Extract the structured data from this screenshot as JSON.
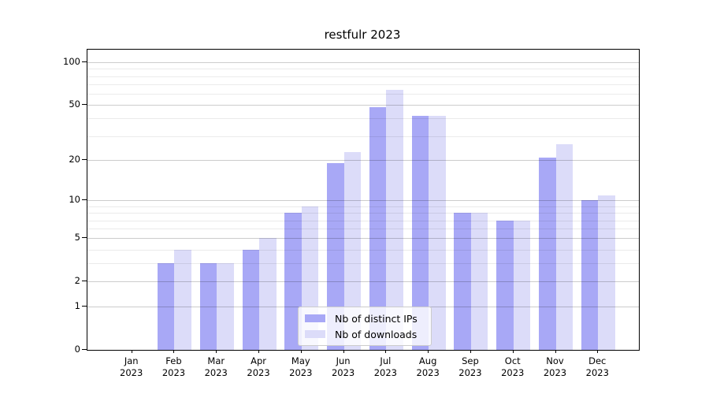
{
  "chart_data": {
    "type": "bar",
    "title": "restfulr 2023",
    "categories": [
      "Jan 2023",
      "Feb 2023",
      "Mar 2023",
      "Apr 2023",
      "May 2023",
      "Jun 2023",
      "Jul 2023",
      "Aug 2023",
      "Sep 2023",
      "Oct 2023",
      "Nov 2023",
      "Dec 2023"
    ],
    "x_tick_months": [
      "Jan",
      "Feb",
      "Mar",
      "Apr",
      "May",
      "Jun",
      "Jul",
      "Aug",
      "Sep",
      "Oct",
      "Nov",
      "Dec"
    ],
    "x_tick_year": "2023",
    "series": [
      {
        "name": "Nb of distinct IPs",
        "color": "#a8a8f6",
        "values": [
          0,
          3,
          3,
          4,
          8,
          19,
          48,
          42,
          8,
          7,
          21,
          10
        ]
      },
      {
        "name": "Nb of downloads",
        "color": "#dcdcf9",
        "values": [
          0,
          4,
          3,
          5,
          9,
          23,
          64,
          42,
          8,
          7,
          26,
          11
        ]
      }
    ],
    "yscale": "log1p",
    "yticks": [
      0,
      1,
      2,
      5,
      10,
      20,
      50,
      100
    ],
    "minor_yticks": [
      3,
      4,
      6,
      7,
      8,
      9,
      30,
      40,
      60,
      70,
      80,
      90
    ],
    "ylim": [
      0,
      123
    ],
    "xlabel": "",
    "ylabel": "",
    "grid": true,
    "grid_above_bars": true,
    "legend_position": "lower center"
  }
}
